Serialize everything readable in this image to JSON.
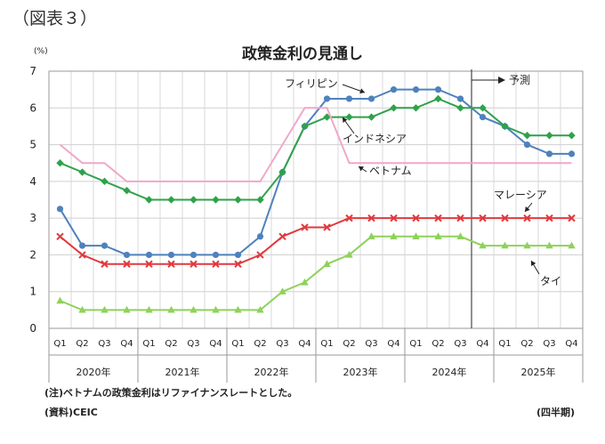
{
  "figure_label": "（図表３）",
  "note": "(注)ベトナムの政策金利はリファイナンスレートとした。",
  "source": "(資料)CEIC",
  "frequency": "(四半期)",
  "chart_data": {
    "type": "line",
    "title": "政策金利の見通し",
    "unit_label": "(%)",
    "xlabel": "",
    "ylabel": "",
    "ylim": [
      0,
      7
    ],
    "yticks": [
      0,
      1,
      2,
      3,
      4,
      5,
      6,
      7
    ],
    "grid": true,
    "quarter_labels": [
      "Q1",
      "Q2",
      "Q3",
      "Q4",
      "Q1",
      "Q2",
      "Q3",
      "Q4",
      "Q1",
      "Q2",
      "Q3",
      "Q4",
      "Q1",
      "Q2",
      "Q3",
      "Q4",
      "Q1",
      "Q2",
      "Q3",
      "Q4",
      "Q1",
      "Q2",
      "Q3",
      "Q4"
    ],
    "years": [
      "2020年",
      "2021年",
      "2022年",
      "2023年",
      "2024年",
      "2025年"
    ],
    "forecast_label": "予測",
    "forecast_start_index": 19,
    "series": [
      {
        "name": "フィリピン",
        "color": "#4f81bd",
        "marker": "circle",
        "values": [
          3.25,
          2.25,
          2.25,
          2.0,
          2.0,
          2.0,
          2.0,
          2.0,
          2.0,
          2.5,
          4.25,
          5.5,
          6.25,
          6.25,
          6.25,
          6.5,
          6.5,
          6.5,
          6.25,
          5.75,
          5.5,
          5.0,
          4.75,
          4.75
        ]
      },
      {
        "name": "インドネシア",
        "color": "#2ea24a",
        "marker": "diamond",
        "values": [
          4.5,
          4.25,
          4.0,
          3.75,
          3.5,
          3.5,
          3.5,
          3.5,
          3.5,
          3.5,
          4.25,
          5.5,
          5.75,
          5.75,
          5.75,
          6.0,
          6.0,
          6.25,
          6.0,
          6.0,
          5.5,
          5.25,
          5.25,
          5.25
        ]
      },
      {
        "name": "ベトナム",
        "color": "#f0a8c8",
        "marker": "none",
        "values": [
          5.0,
          4.5,
          4.5,
          4.0,
          4.0,
          4.0,
          4.0,
          4.0,
          4.0,
          4.0,
          5.0,
          6.0,
          6.0,
          4.5,
          4.5,
          4.5,
          4.5,
          4.5,
          4.5,
          4.5,
          4.5,
          4.5,
          4.5,
          4.5
        ]
      },
      {
        "name": "マレーシア",
        "color": "#e03a3e",
        "marker": "x",
        "values": [
          2.5,
          2.0,
          1.75,
          1.75,
          1.75,
          1.75,
          1.75,
          1.75,
          1.75,
          2.0,
          2.5,
          2.75,
          2.75,
          3.0,
          3.0,
          3.0,
          3.0,
          3.0,
          3.0,
          3.0,
          3.0,
          3.0,
          3.0,
          3.0
        ]
      },
      {
        "name": "タイ",
        "color": "#8ed25a",
        "marker": "triangle",
        "values": [
          0.75,
          0.5,
          0.5,
          0.5,
          0.5,
          0.5,
          0.5,
          0.5,
          0.5,
          0.5,
          1.0,
          1.25,
          1.75,
          2.0,
          2.5,
          2.5,
          2.5,
          2.5,
          2.5,
          2.25,
          2.25,
          2.25,
          2.25,
          2.25
        ]
      }
    ]
  }
}
